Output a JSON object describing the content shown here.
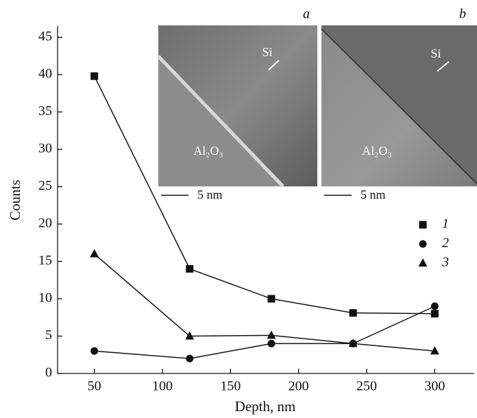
{
  "chart_data": {
    "type": "line",
    "x_label": "Depth, nm",
    "y_label": "Counts",
    "x": [
      50,
      120,
      180,
      240,
      300
    ],
    "series": [
      {
        "name": "1",
        "color": "#111111",
        "marker": "square",
        "values": [
          39.8,
          14,
          10,
          8.1,
          8
        ]
      },
      {
        "name": "2",
        "color": "#111111",
        "marker": "circle",
        "values": [
          3,
          2,
          4,
          4,
          9
        ]
      },
      {
        "name": "3",
        "color": "#111111",
        "marker": "triangle",
        "values": [
          16,
          5,
          5.1,
          4,
          3
        ]
      }
    ],
    "xlim": [
      23,
      329
    ],
    "ylim": [
      0,
      46.5
    ],
    "xticks": [
      50,
      100,
      150,
      200,
      250,
      300
    ],
    "yticks": [
      0,
      5,
      10,
      15,
      20,
      25,
      30,
      35,
      40,
      45
    ],
    "legend": "right",
    "insets": [
      {
        "panel": "a",
        "upper": "Si",
        "lower": "Al₂O₃",
        "scale": "5 nm"
      },
      {
        "panel": "b",
        "upper": "Si",
        "lower": "Al₂O₃",
        "scale": "5 nm"
      }
    ]
  }
}
